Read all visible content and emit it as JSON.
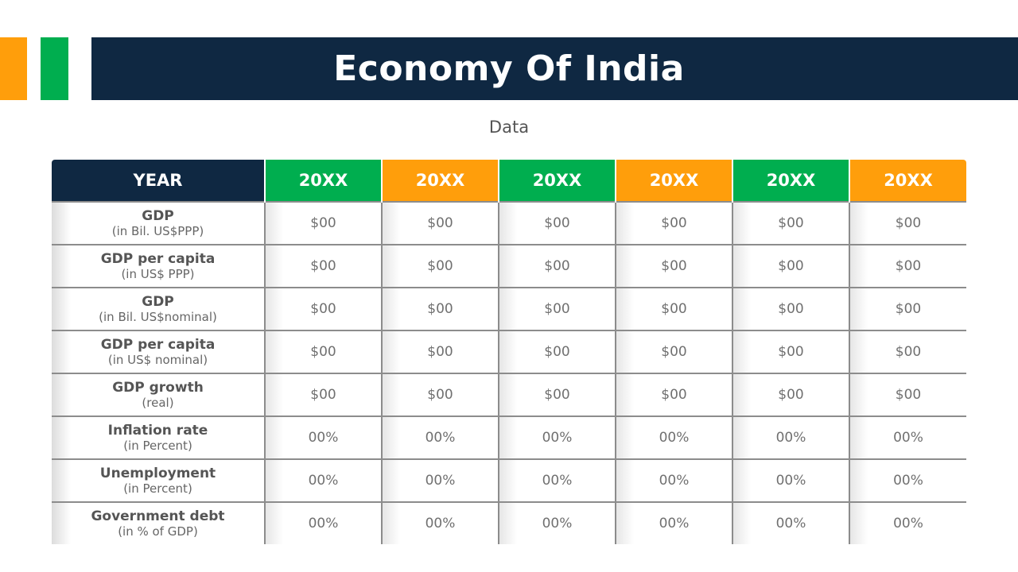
{
  "title": "Economy Of India",
  "subtitle": "Data",
  "colors": {
    "navy": "#0F2842",
    "orange": "#FF9E0B",
    "green": "#00AE4F"
  },
  "table": {
    "header_label": "YEAR",
    "years": [
      "20XX",
      "20XX",
      "20XX",
      "20XX",
      "20XX",
      "20XX"
    ],
    "year_colors": [
      "green",
      "orange",
      "green",
      "orange",
      "green",
      "orange"
    ],
    "rows": [
      {
        "label": "GDP",
        "sublabel": "(in Bil. US$PPP)",
        "values": [
          "$00",
          "$00",
          "$00",
          "$00",
          "$00",
          "$00"
        ]
      },
      {
        "label": "GDP per capita",
        "sublabel": "(in US$ PPP)",
        "values": [
          "$00",
          "$00",
          "$00",
          "$00",
          "$00",
          "$00"
        ]
      },
      {
        "label": "GDP",
        "sublabel": "(in Bil. US$nominal)",
        "values": [
          "$00",
          "$00",
          "$00",
          "$00",
          "$00",
          "$00"
        ]
      },
      {
        "label": "GDP per capita",
        "sublabel": "(in US$ nominal)",
        "values": [
          "$00",
          "$00",
          "$00",
          "$00",
          "$00",
          "$00"
        ]
      },
      {
        "label": "GDP growth",
        "sublabel": "(real)",
        "values": [
          "$00",
          "$00",
          "$00",
          "$00",
          "$00",
          "$00"
        ]
      },
      {
        "label": "Inflation rate",
        "sublabel": "(in Percent)",
        "values": [
          "00%",
          "00%",
          "00%",
          "00%",
          "00%",
          "00%"
        ]
      },
      {
        "label": "Unemployment",
        "sublabel": "(in Percent)",
        "values": [
          "00%",
          "00%",
          "00%",
          "00%",
          "00%",
          "00%"
        ]
      },
      {
        "label": "Government debt",
        "sublabel": "(in % of GDP)",
        "values": [
          "00%",
          "00%",
          "00%",
          "00%",
          "00%",
          "00%"
        ]
      }
    ]
  }
}
